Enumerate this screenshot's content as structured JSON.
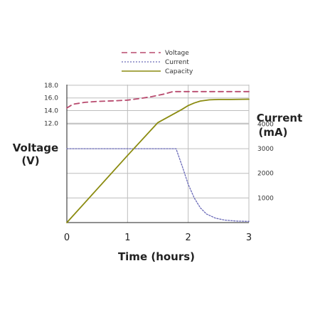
{
  "chart_data": {
    "type": "line",
    "legend": {
      "placement": "top",
      "entries": [
        {
          "label": "Voltage",
          "color": "#b84a6e",
          "style": "dashed"
        },
        {
          "label": "Current",
          "color": "#6a6ab8",
          "style": "dotted"
        },
        {
          "label": "Capacity",
          "color": "#8b8b10",
          "style": "solid"
        }
      ]
    },
    "xlabel": "Time (hours)",
    "ylabel_left": [
      "Voltage",
      "(V)"
    ],
    "ylabel_right": [
      "Current",
      "(mA)"
    ],
    "x_ticks": [
      "0",
      "1",
      "2",
      "3"
    ],
    "xlim": [
      0,
      3
    ],
    "left_axis": {
      "ticks": [
        "18.0",
        "16.0",
        "14.0",
        "12.0"
      ],
      "tick_values": [
        18,
        16,
        14,
        12
      ],
      "ylim": [
        -3.7,
        18.1
      ]
    },
    "right_axis": {
      "ticks": [
        "4000",
        "3000",
        "2000",
        "1000"
      ],
      "tick_values": [
        4000,
        3000,
        2000,
        1000
      ],
      "ylim": [
        0,
        5600
      ]
    },
    "grid": true,
    "series": [
      {
        "name": "Voltage",
        "axis": "left",
        "color": "#b84a6e",
        "x": [
          0,
          0.1,
          0.3,
          0.5,
          0.8,
          1.0,
          1.2,
          1.4,
          1.6,
          1.75,
          1.85,
          2.0,
          2.5,
          3.0
        ],
        "y": [
          14.4,
          15.0,
          15.3,
          15.45,
          15.55,
          15.65,
          15.9,
          16.2,
          16.6,
          17.0,
          17.0,
          17.0,
          17.0,
          17.0
        ]
      },
      {
        "name": "Current",
        "axis": "right",
        "color": "#6a6ab8",
        "x": [
          0,
          0.5,
          1.0,
          1.5,
          1.8,
          1.9,
          2.0,
          2.1,
          2.2,
          2.3,
          2.45,
          2.6,
          2.8,
          3.0
        ],
        "y": [
          3000,
          3000,
          3000,
          3000,
          3000,
          2300,
          1550,
          1000,
          600,
          350,
          180,
          100,
          60,
          50
        ]
      },
      {
        "name": "Capacity",
        "axis": "left",
        "color": "#8b8b10",
        "x": [
          0,
          0.5,
          1.0,
          1.5,
          1.9,
          2.0,
          2.1,
          2.2,
          2.35,
          2.5,
          2.7,
          3.0
        ],
        "y": [
          -3.7,
          1.6,
          6.9,
          12.1,
          14.2,
          14.8,
          15.2,
          15.5,
          15.7,
          15.75,
          15.75,
          15.8
        ]
      }
    ]
  }
}
